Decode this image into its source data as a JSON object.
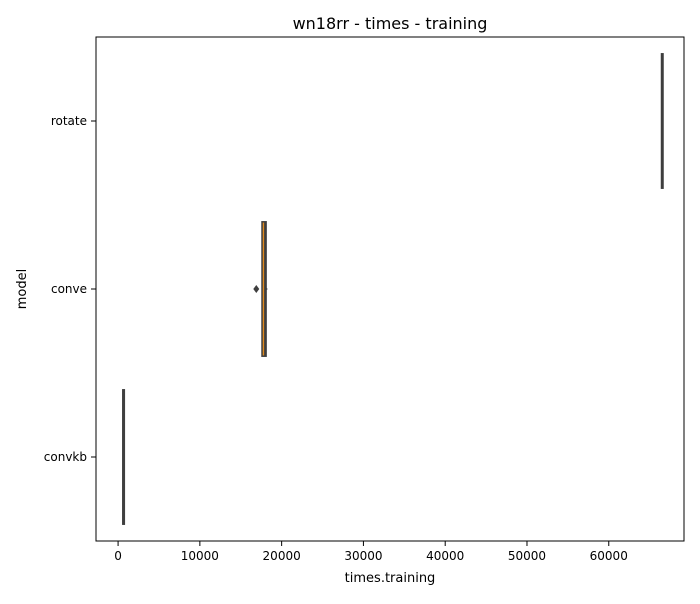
{
  "chart_data": {
    "type": "boxplot",
    "orientation": "horizontal",
    "title": "wn18rr - times - training",
    "xlabel": "times.training",
    "ylabel": "model",
    "xlim": [
      -2700,
      69200
    ],
    "xticks": [
      0,
      10000,
      20000,
      30000,
      40000,
      50000,
      60000
    ],
    "xtick_labels": [
      "0",
      "10000",
      "20000",
      "30000",
      "40000",
      "50000",
      "60000"
    ],
    "categories": [
      "rotate",
      "conve",
      "convkb"
    ],
    "grid": false,
    "legend": "none",
    "boxes": [
      {
        "name": "rotate",
        "q1": 66450,
        "median": 66500,
        "q3": 66550,
        "whisker_low": 66400,
        "whisker_high": 66600,
        "outliers": [],
        "color": "#3b6fb6"
      },
      {
        "name": "conve",
        "q1": 17600,
        "median": 17950,
        "q3": 18100,
        "whisker_low": 17550,
        "whisker_high": 18250,
        "outliers": [
          16900
        ],
        "color": "#e08a1e"
      },
      {
        "name": "convkb",
        "q1": 580,
        "median": 600,
        "q3": 620,
        "whisker_low": 560,
        "whisker_high": 640,
        "outliers": [],
        "color": "#3a923a"
      }
    ]
  }
}
